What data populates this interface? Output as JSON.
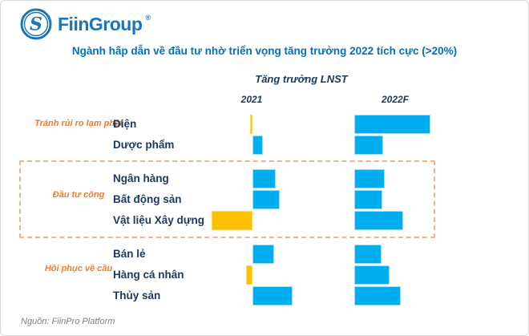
{
  "logo": {
    "text": "FiinGroup",
    "reg": "®"
  },
  "title": "Ngành hấp dẫn về đầu tư nhờ triển vọng tăng trưởng 2022 tích cực (>20%)",
  "subtitle": "Tăng trưởng LNST",
  "columns": {
    "col2021": "2021",
    "col2022": "2022F"
  },
  "source": "Nguồn: FiinPro Platform",
  "colors": {
    "brand_blue": "#1B75BC",
    "title_blue": "#0070C0",
    "navy_text": "#1F3864",
    "orange_text": "#ED7D31",
    "dashed_border": "#F4B183",
    "bar_positive": "#00AEEF",
    "bar_positive_border": "#9FDFF7",
    "bar_negative": "#FFC000",
    "bar_negative_border": "#FFD966",
    "source_gray": "#808080"
  },
  "chart_data": {
    "type": "bar",
    "orientation": "horizontal",
    "title": "Tăng trưởng LNST",
    "columns": [
      "2021",
      "2022F"
    ],
    "note": "No numeric axis shown in the figure; values are relative bar lengths measured in pixels. Negative values render as yellow bars extending left of the column baseline, positive as blue bars extending right.",
    "legend": "none",
    "groups": [
      {
        "label": "Tránh rủi ro lạm phát",
        "boxed": false,
        "rows": [
          {
            "category": "Điện",
            "v2021": -3,
            "v2022F": 95
          },
          {
            "category": "Dược phẩm",
            "v2021": 13,
            "v2022F": 36
          }
        ]
      },
      {
        "label": "Đầu tư công",
        "boxed": true,
        "rows": [
          {
            "category": "Ngân hàng",
            "v2021": 29,
            "v2022F": 38
          },
          {
            "category": "Bất động sản",
            "v2021": 34,
            "v2022F": 35
          },
          {
            "category": "Vật liệu Xây dựng",
            "v2021": -51,
            "v2022F": 61
          }
        ]
      },
      {
        "label": "Hồi phục về cầu",
        "boxed": false,
        "rows": [
          {
            "category": "Bán lẻ",
            "v2021": 27,
            "v2022F": 34
          },
          {
            "category": "Hàng cá nhân",
            "v2021": -8,
            "v2022F": 44
          },
          {
            "category": "Thủy sản",
            "v2021": 50,
            "v2022F": 58
          }
        ]
      }
    ]
  }
}
